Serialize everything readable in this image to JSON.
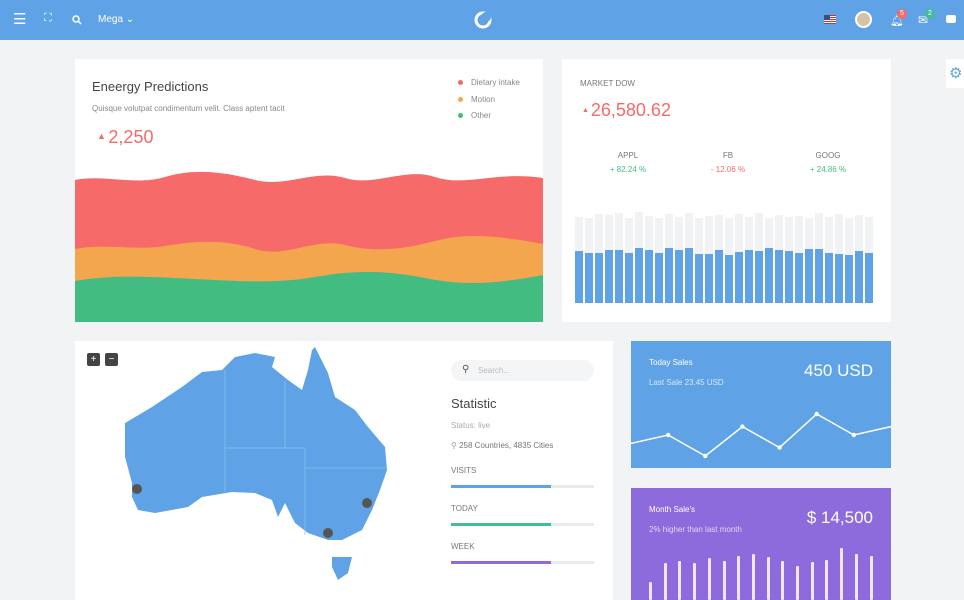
{
  "header": {
    "menu_icon": "hamburger-icon",
    "fullscreen_icon": "expand-icon",
    "search_icon": "search-icon",
    "mega_label": "Mega",
    "logo_icon": "crescent-logo",
    "flag_icon": "us-flag-icon",
    "notifications_count": "5",
    "messages_count": "2"
  },
  "energy": {
    "title": "Eneergy Predictions",
    "subtitle": "Quisque volutpat condimentum velit. Class aptent tacit",
    "value": "2,250",
    "legend": [
      {
        "label": "Dietary intake",
        "color": "#f76a6a"
      },
      {
        "label": "Motion",
        "color": "#f4a64f"
      },
      {
        "label": "Other",
        "color": "#43bc82"
      }
    ]
  },
  "market": {
    "title": "MARKET DOW",
    "value": "26,580.62",
    "tickers": [
      {
        "name": "APPL",
        "change": "+ 82.24 %",
        "color": "#43bc82"
      },
      {
        "name": "FB",
        "change": "- 12.06 %",
        "color": "#f76a6a"
      },
      {
        "name": "GOOG",
        "change": "+ 24.86 %",
        "color": "#43bc82"
      }
    ],
    "bars_total": [
      0.92,
      0.9,
      0.95,
      0.94,
      0.96,
      0.9,
      0.97,
      0.93,
      0.9,
      0.95,
      0.92,
      0.96,
      0.9,
      0.93,
      0.94,
      0.9,
      0.95,
      0.92,
      0.96,
      0.9,
      0.94,
      0.92,
      0.93,
      0.9,
      0.96,
      0.92,
      0.95,
      0.9,
      0.94,
      0.92
    ],
    "bars_value": [
      0.55,
      0.53,
      0.53,
      0.56,
      0.56,
      0.53,
      0.58,
      0.56,
      0.53,
      0.58,
      0.56,
      0.58,
      0.52,
      0.52,
      0.56,
      0.51,
      0.54,
      0.56,
      0.55,
      0.59,
      0.56,
      0.55,
      0.53,
      0.57,
      0.57,
      0.53,
      0.52,
      0.51,
      0.55,
      0.53
    ]
  },
  "map": {
    "zoom_in": "+",
    "zoom_out": "−"
  },
  "statistic": {
    "search_placeholder": "Search...",
    "title": "Statistic",
    "status": "Status: live",
    "location": "258 Countries, 4835 Cities",
    "bars": [
      {
        "label": "VISITS",
        "percent": 70,
        "color": "#5fa3e6"
      },
      {
        "label": "TODAY",
        "percent": 70,
        "color": "#43bc9a"
      },
      {
        "label": "WEEK",
        "percent": 70,
        "color": "#8e6bdc"
      }
    ]
  },
  "today_sales": {
    "title": "Today Sales",
    "subtitle": "Last Sale 23.45 USD",
    "value": "450 USD",
    "color": "#5fa3e6",
    "points": [
      4,
      6,
      1,
      8,
      3,
      11,
      6,
      8
    ]
  },
  "month_sales": {
    "title": "Month Sale's",
    "subtitle": "2% higher than last month",
    "value": "$ 14,500",
    "color": "#8e6bdc",
    "bars": [
      30,
      60,
      63,
      60,
      68,
      63,
      72,
      76,
      70,
      64,
      55,
      62,
      66,
      85,
      76,
      72
    ]
  }
}
